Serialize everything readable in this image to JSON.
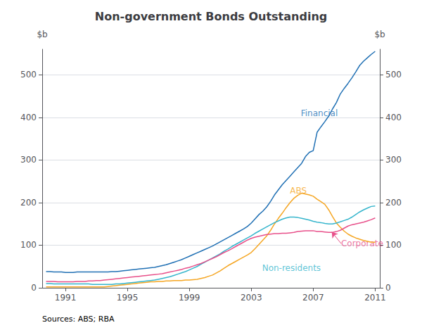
{
  "chart_data": {
    "type": "line",
    "title": "Non-government Bonds Outstanding",
    "ylabel": "$b",
    "y2label": "$b",
    "source": "Sources: ABS; RBA",
    "grid": true,
    "legend": false,
    "xlim": [
      1989.5,
      2011.3
    ],
    "xticks": [
      1991,
      1995,
      1999,
      2003,
      2007,
      2011
    ],
    "ylim": [
      0,
      560
    ],
    "yticks": [
      0,
      100,
      200,
      300,
      400,
      500
    ],
    "y2lim": [
      0,
      560
    ],
    "y2ticks": [
      0,
      100,
      200,
      300,
      400,
      500
    ],
    "x": [
      1989.75,
      1990.0,
      1990.25,
      1990.5,
      1990.75,
      1991.0,
      1991.25,
      1991.5,
      1991.75,
      1992.0,
      1992.25,
      1992.5,
      1992.75,
      1993.0,
      1993.25,
      1993.5,
      1993.75,
      1994.0,
      1994.25,
      1994.5,
      1994.75,
      1995.0,
      1995.25,
      1995.5,
      1995.75,
      1996.0,
      1996.25,
      1996.5,
      1996.75,
      1997.0,
      1997.25,
      1997.5,
      1997.75,
      1998.0,
      1998.25,
      1998.5,
      1998.75,
      1999.0,
      1999.25,
      1999.5,
      1999.75,
      2000.0,
      2000.25,
      2000.5,
      2000.75,
      2001.0,
      2001.25,
      2001.5,
      2001.75,
      2002.0,
      2002.25,
      2002.5,
      2002.75,
      2003.0,
      2003.25,
      2003.5,
      2003.75,
      2004.0,
      2004.25,
      2004.5,
      2004.75,
      2005.0,
      2005.25,
      2005.5,
      2005.75,
      2006.0,
      2006.25,
      2006.5,
      2006.75,
      2007.0,
      2007.25,
      2007.5,
      2007.75,
      2008.0,
      2008.25,
      2008.5,
      2008.75,
      2009.0,
      2009.25,
      2009.5,
      2009.75,
      2010.0,
      2010.25,
      2010.5,
      2010.75,
      2011.0
    ],
    "series": [
      {
        "name": "Financial",
        "color": "#2070b4",
        "values": [
          38,
          38,
          37,
          37,
          37,
          36,
          36,
          36,
          37,
          37,
          37,
          37,
          37,
          37,
          37,
          37,
          37,
          38,
          38,
          39,
          40,
          41,
          42,
          43,
          44,
          45,
          46,
          47,
          48,
          50,
          52,
          54,
          57,
          60,
          63,
          66,
          70,
          74,
          78,
          82,
          86,
          90,
          94,
          98,
          103,
          108,
          113,
          118,
          123,
          128,
          133,
          138,
          144,
          152,
          162,
          172,
          180,
          190,
          203,
          218,
          230,
          242,
          252,
          262,
          272,
          282,
          292,
          308,
          318,
          322,
          365,
          378,
          390,
          403,
          420,
          435,
          455,
          468,
          480,
          493,
          507,
          522,
          532,
          540,
          548,
          555
        ]
      },
      {
        "name": "ABS",
        "color": "#f5a623",
        "values": [
          2,
          2,
          2,
          2,
          2,
          2,
          2,
          2,
          2,
          2,
          2,
          2,
          2,
          2,
          2,
          2,
          3,
          4,
          5,
          6,
          7,
          8,
          9,
          10,
          11,
          12,
          13,
          14,
          14,
          15,
          15,
          16,
          16,
          17,
          17,
          17,
          18,
          18,
          19,
          20,
          22,
          24,
          27,
          30,
          35,
          40,
          46,
          52,
          57,
          62,
          67,
          72,
          77,
          83,
          92,
          102,
          112,
          122,
          135,
          150,
          163,
          175,
          188,
          200,
          210,
          217,
          222,
          220,
          218,
          215,
          208,
          202,
          196,
          183,
          167,
          152,
          142,
          133,
          126,
          121,
          117,
          114,
          111,
          109,
          107,
          107
        ]
      },
      {
        "name": "Non-residents",
        "color": "#35b5cc",
        "values": [
          10,
          10,
          9,
          9,
          9,
          9,
          9,
          9,
          9,
          9,
          9,
          9,
          8,
          8,
          8,
          8,
          8,
          8,
          9,
          9,
          10,
          11,
          12,
          13,
          14,
          15,
          16,
          17,
          18,
          20,
          22,
          24,
          26,
          29,
          32,
          35,
          38,
          42,
          46,
          50,
          55,
          60,
          65,
          70,
          75,
          80,
          86,
          91,
          97,
          102,
          107,
          112,
          117,
          122,
          128,
          133,
          138,
          143,
          148,
          153,
          157,
          161,
          164,
          166,
          166,
          165,
          163,
          161,
          159,
          156,
          154,
          153,
          151,
          150,
          150,
          152,
          155,
          158,
          161,
          166,
          172,
          178,
          183,
          187,
          191,
          192
        ]
      },
      {
        "name": "Corporate",
        "color": "#e8508a",
        "values": [
          15,
          15,
          15,
          14,
          14,
          14,
          14,
          14,
          15,
          15,
          15,
          16,
          16,
          17,
          17,
          18,
          19,
          20,
          21,
          22,
          23,
          24,
          25,
          26,
          27,
          28,
          29,
          30,
          31,
          32,
          33,
          35,
          37,
          39,
          41,
          43,
          46,
          48,
          51,
          54,
          57,
          61,
          65,
          69,
          73,
          78,
          83,
          87,
          92,
          97,
          102,
          107,
          112,
          116,
          119,
          121,
          123,
          125,
          126,
          127,
          127,
          128,
          128,
          129,
          130,
          132,
          133,
          134,
          134,
          134,
          132,
          132,
          131,
          130,
          130,
          132,
          135,
          140,
          145,
          148,
          150,
          152,
          154,
          157,
          160,
          164
        ]
      }
    ],
    "annotations": [
      {
        "text": "Financial",
        "x": 2006.2,
        "y": 410,
        "color": "#2070b4"
      },
      {
        "text": "ABS",
        "x": 2005.5,
        "y": 228,
        "color": "#f5a623"
      },
      {
        "text": "Corporate",
        "x": 2008.8,
        "y": 104,
        "color": "#e8508a",
        "arrow": {
          "x": 2008.2,
          "y": 131
        }
      },
      {
        "text": "Non-residents",
        "x": 2003.7,
        "y": 47,
        "color": "#35b5cc"
      }
    ]
  }
}
